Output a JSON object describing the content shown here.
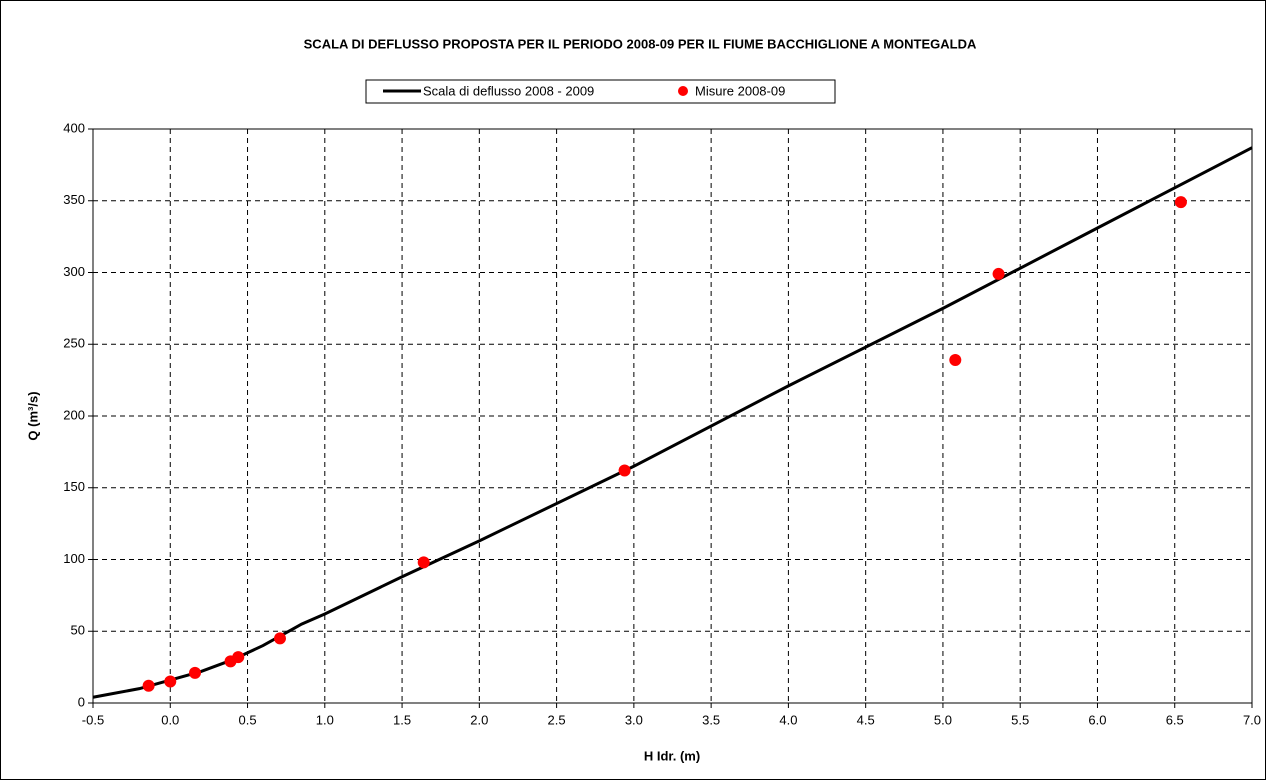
{
  "chart_data": {
    "type": "line",
    "title": "SCALA DI DEFLUSSO PROPOSTA PER IL PERIODO 2008-09 PER IL FIUME BACCHIGLIONE A MONTEGALDA",
    "x_label": "H Idr. (m)",
    "y_label": "Q (m³/s)",
    "xlim": [
      -0.5,
      7.0
    ],
    "ylim": [
      0,
      400
    ],
    "xticks": [
      -0.5,
      {
        "value": 0,
        "label": "0.0"
      },
      0.5,
      {
        "value": 1,
        "label": "1.0"
      },
      1.5,
      {
        "value": 2,
        "label": "2.0"
      },
      2.5,
      {
        "value": 3,
        "label": "3.0"
      },
      3.5,
      {
        "value": 4,
        "label": "4.0"
      },
      4.5,
      {
        "value": 5,
        "label": "5.0"
      },
      5.5,
      {
        "value": 6,
        "label": "6.0"
      },
      6.5,
      {
        "value": 7,
        "label": "7.0"
      }
    ],
    "yticks": [
      0,
      50,
      100,
      150,
      200,
      250,
      300,
      350,
      400
    ],
    "grid": true,
    "legend": "top",
    "series": [
      {
        "name": "Scala di deflusso 2008 - 2009",
        "type": "line",
        "color": "#000000",
        "x": [
          -0.5,
          -0.4,
          -0.2,
          0,
          0.2,
          0.4,
          0.6,
          0.8,
          0.85,
          1.0,
          1.5,
          2.0,
          3.0,
          4.0,
          5.0,
          6.0,
          7.0
        ],
        "values": [
          4,
          6,
          10,
          16,
          22,
          30,
          40,
          52,
          55,
          62,
          88,
          113,
          165,
          221,
          275,
          331,
          387
        ]
      },
      {
        "name": "Misure 2008-09",
        "type": "scatter",
        "color": "#ff0000",
        "x": [
          -0.14,
          0.0,
          0.16,
          0.39,
          0.44,
          0.71,
          1.64,
          2.94,
          5.08,
          5.36,
          6.54
        ],
        "values": [
          12,
          15,
          21,
          29,
          32,
          45,
          98,
          162,
          239,
          299,
          349
        ]
      }
    ]
  }
}
